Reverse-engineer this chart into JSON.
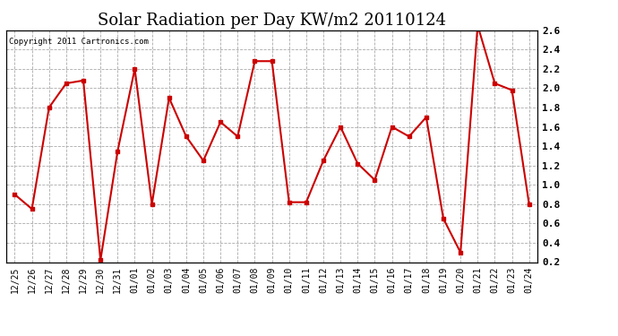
{
  "title": "Solar Radiation per Day KW/m2 20110124",
  "copyright": "Copyright 2011 Cartronics.com",
  "labels": [
    "12/25",
    "12/26",
    "12/27",
    "12/28",
    "12/29",
    "12/30",
    "12/31",
    "01/01",
    "01/02",
    "01/03",
    "01/04",
    "01/05",
    "01/06",
    "01/07",
    "01/08",
    "01/09",
    "01/10",
    "01/11",
    "01/12",
    "01/13",
    "01/14",
    "01/15",
    "01/16",
    "01/17",
    "01/18",
    "01/19",
    "01/20",
    "01/21",
    "01/22",
    "01/23",
    "01/24"
  ],
  "values": [
    0.9,
    0.75,
    1.8,
    2.05,
    2.08,
    0.22,
    1.35,
    2.2,
    0.8,
    1.9,
    1.5,
    1.25,
    1.65,
    1.5,
    2.28,
    2.28,
    0.82,
    0.82,
    1.25,
    1.6,
    1.22,
    1.05,
    1.6,
    1.5,
    1.7,
    0.65,
    0.3,
    2.65,
    2.05,
    1.98,
    0.8
  ],
  "line_color": "#cc0000",
  "marker": "s",
  "marker_size": 3,
  "ylim": [
    0.2,
    2.6
  ],
  "yticks": [
    0.2,
    0.4,
    0.6,
    0.8,
    1.0,
    1.2,
    1.4,
    1.6,
    1.8,
    2.0,
    2.2,
    2.4,
    2.6
  ],
  "bg_color": "#ffffff",
  "grid_color": "#aaaaaa",
  "title_fontsize": 13,
  "tick_fontsize": 7,
  "copyright_fontsize": 6.5
}
